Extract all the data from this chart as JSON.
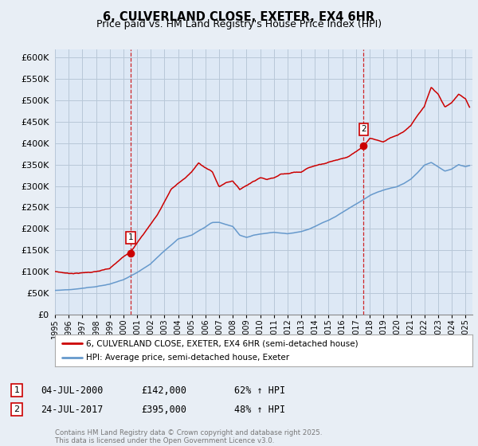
{
  "title": "6, CULVERLAND CLOSE, EXETER, EX4 6HR",
  "subtitle": "Price paid vs. HM Land Registry's House Price Index (HPI)",
  "ylim": [
    0,
    620000
  ],
  "yticks": [
    0,
    50000,
    100000,
    150000,
    200000,
    250000,
    300000,
    350000,
    400000,
    450000,
    500000,
    550000,
    600000
  ],
  "xlim_start": 1995.0,
  "xlim_end": 2025.5,
  "background_color": "#e8eef5",
  "plot_bg_color": "#dde8f5",
  "grid_color": "#b8c8d8",
  "red_color": "#cc0000",
  "blue_color": "#6699cc",
  "marker1_x": 2000.51,
  "marker1_y": 142000,
  "marker2_x": 2017.56,
  "marker2_y": 395000,
  "legend_line1": "6, CULVERLAND CLOSE, EXETER, EX4 6HR (semi-detached house)",
  "legend_line2": "HPI: Average price, semi-detached house, Exeter",
  "footnote": "Contains HM Land Registry data © Crown copyright and database right 2025.\nThis data is licensed under the Open Government Licence v3.0.",
  "title_fontsize": 10.5,
  "subtitle_fontsize": 9
}
